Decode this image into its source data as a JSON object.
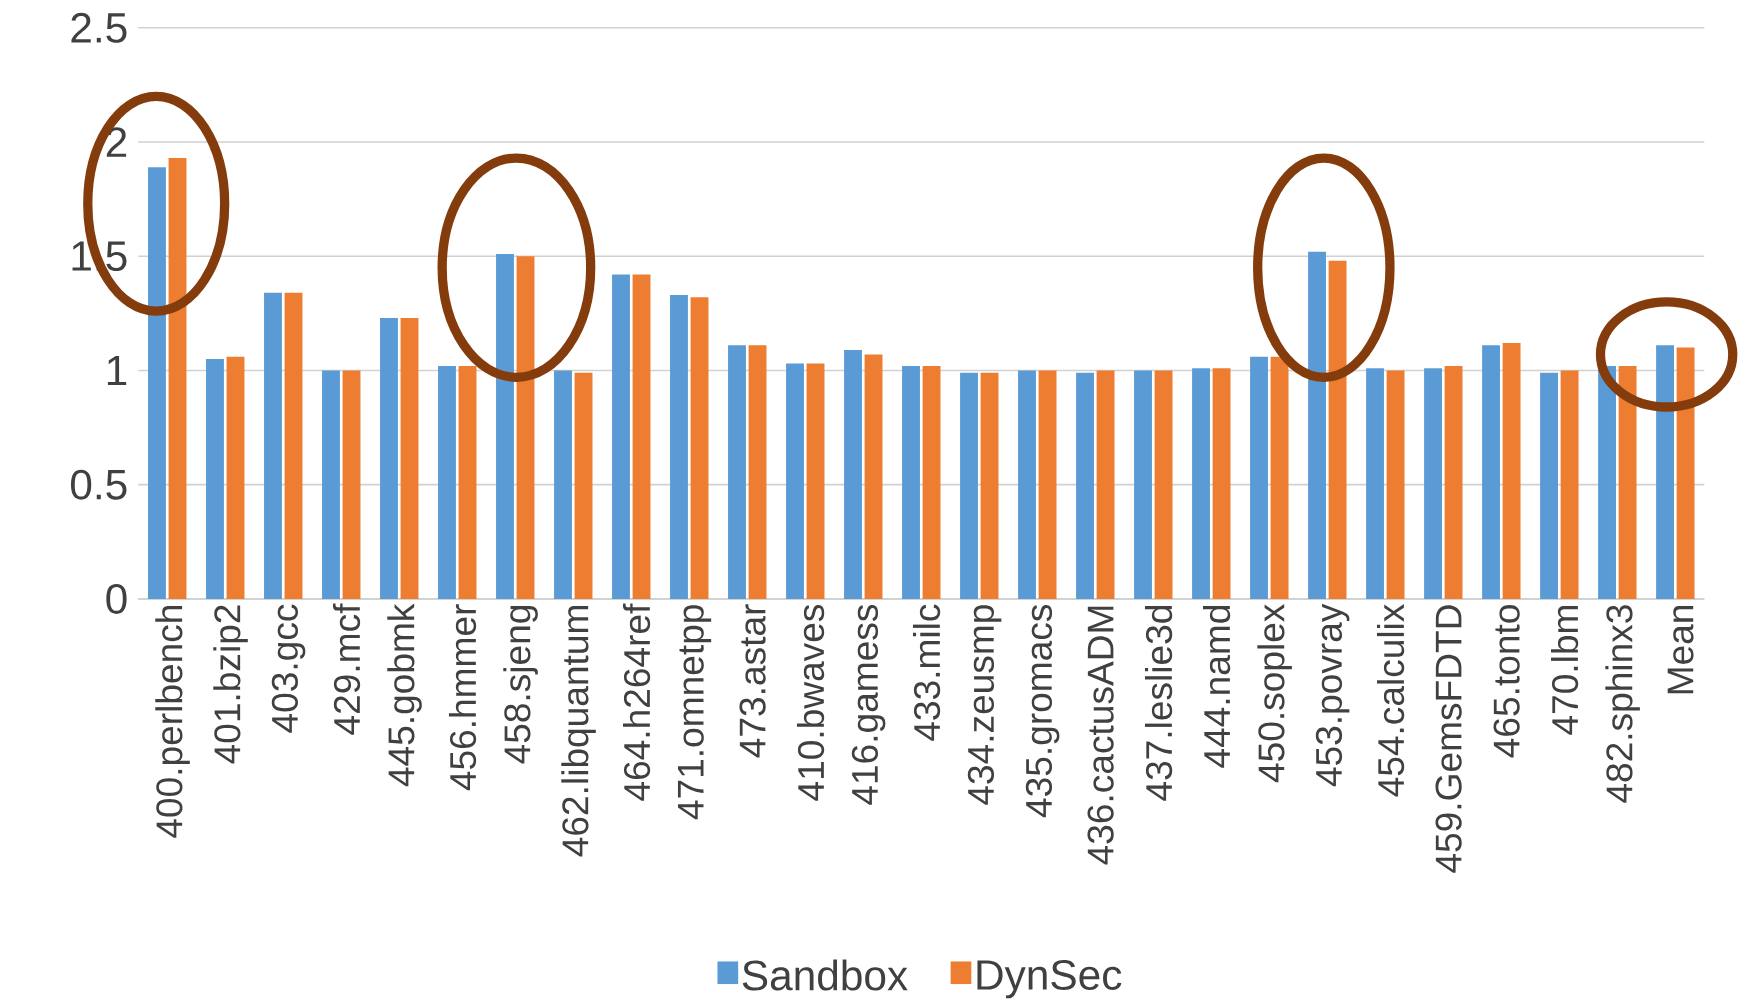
{
  "chart_data": {
    "type": "bar",
    "categories": [
      "400.perlbench",
      "401.bzip2",
      "403.gcc",
      "429.mcf",
      "445.gobmk",
      "456.hmmer",
      "458.sjeng",
      "462.libquantum",
      "464.h264ref",
      "471.omnetpp",
      "473.astar",
      "410.bwaves",
      "416.gamess",
      "433.milc",
      "434.zeusmp",
      "435.gromacs",
      "436.cactusADM",
      "437.leslie3d",
      "444.namd",
      "450.soplex",
      "453.povray",
      "454.calculix",
      "459.GemsFDTD",
      "465.tonto",
      "470.lbm",
      "482.sphinx3",
      "Mean"
    ],
    "series": [
      {
        "name": "Sandbox",
        "color": "#5b9bd5",
        "values": [
          1.89,
          1.05,
          1.34,
          1.0,
          1.23,
          1.02,
          1.51,
          1.0,
          1.42,
          1.33,
          1.11,
          1.03,
          1.09,
          1.02,
          0.99,
          1.0,
          0.99,
          1.0,
          1.01,
          1.06,
          1.52,
          1.01,
          1.01,
          1.11,
          0.99,
          1.02,
          1.11
        ]
      },
      {
        "name": "DynSec",
        "color": "#ed7d31",
        "values": [
          1.93,
          1.06,
          1.34,
          1.0,
          1.23,
          1.02,
          1.5,
          0.99,
          1.42,
          1.32,
          1.11,
          1.03,
          1.07,
          1.02,
          0.99,
          1.0,
          1.0,
          1.0,
          1.01,
          1.06,
          1.48,
          1.0,
          1.02,
          1.12,
          1.0,
          1.02,
          1.1
        ]
      }
    ],
    "ylim": [
      0,
      2.5
    ],
    "yticks": [
      0,
      0.5,
      1,
      1.5,
      2,
      2.5
    ],
    "grid": "y",
    "legend": "bottom"
  }
}
